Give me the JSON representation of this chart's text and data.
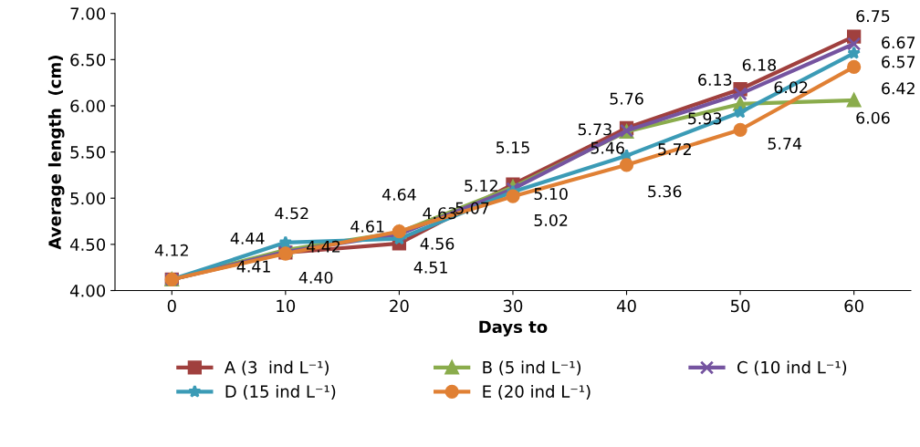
{
  "chart_data": {
    "type": "line",
    "xlabel": "Days to",
    "ylabel": "Average length  (cm)",
    "x": [
      0,
      10,
      20,
      30,
      40,
      50,
      60
    ],
    "xlim": [
      -5,
      65
    ],
    "xticks": [
      0,
      10,
      20,
      30,
      40,
      50,
      60
    ],
    "ylim": [
      4,
      7
    ],
    "yticks": [
      {
        "value": 4,
        "label": "4.00"
      },
      {
        "value": 4.5,
        "label": "4.50"
      },
      {
        "value": 5,
        "label": "5.00"
      },
      {
        "value": 5.5,
        "label": "5.50"
      },
      {
        "value": 6,
        "label": "6.00"
      },
      {
        "value": 6.5,
        "label": "6.50"
      },
      {
        "value": 7,
        "label": "7.00"
      }
    ],
    "series": [
      {
        "name": "A (3  ind L⁻¹)",
        "color": "#a0403e",
        "marker": "square",
        "values": [
          4.12,
          4.41,
          4.51,
          5.15,
          5.76,
          6.18,
          6.75
        ],
        "value_labels": [
          "4.12",
          "4.41",
          "4.51",
          "5.15",
          "5.76",
          "6.18",
          "6.75"
        ]
      },
      {
        "name": "B (5 ind L⁻¹)",
        "color": "#8aac4c",
        "marker": "triangle",
        "values": [
          4.12,
          4.44,
          4.63,
          5.12,
          5.72,
          6.02,
          6.06
        ],
        "value_labels": [
          null,
          "4.44",
          "4.63",
          "5.12",
          "5.72",
          "6.02",
          "6.06"
        ]
      },
      {
        "name": "C (10 ind L⁻¹)",
        "color": "#7554a0",
        "marker": "cross",
        "values": [
          4.12,
          4.42,
          4.61,
          5.1,
          5.73,
          6.13,
          6.67
        ],
        "value_labels": [
          null,
          "4.42",
          "4.61",
          "5.10",
          "5.73",
          "6.13",
          "6.67"
        ]
      },
      {
        "name": "D (15 ind L⁻¹)",
        "color": "#3b9bb6",
        "marker": "star",
        "values": [
          4.12,
          4.52,
          4.56,
          5.07,
          5.46,
          5.93,
          6.57
        ],
        "value_labels": [
          null,
          "4.52",
          "4.56",
          "5.07",
          "5.46",
          "5.93",
          "6.57"
        ]
      },
      {
        "name": "E (20 ind L⁻¹)",
        "color": "#e08034",
        "marker": "circle",
        "values": [
          4.12,
          4.4,
          4.64,
          5.02,
          5.36,
          5.74,
          6.42
        ],
        "value_labels": [
          null,
          "4.40",
          "4.64",
          "5.02",
          "5.36",
          "5.74",
          "6.42"
        ]
      }
    ],
    "grid": false,
    "legend": "bottom",
    "line_style": "solid"
  }
}
